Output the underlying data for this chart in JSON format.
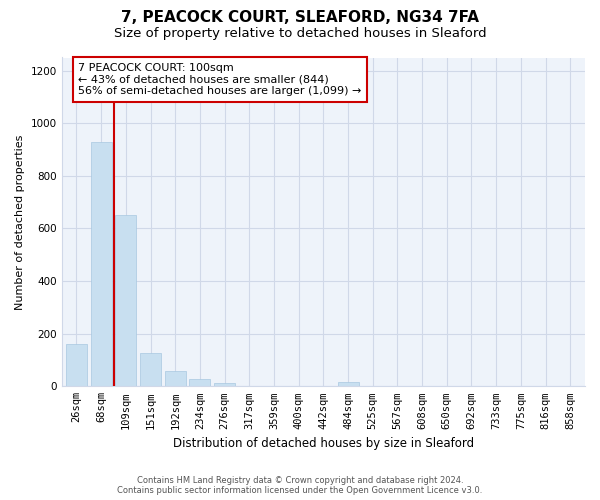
{
  "title": "7, PEACOCK COURT, SLEAFORD, NG34 7FA",
  "subtitle": "Size of property relative to detached houses in Sleaford",
  "xlabel": "Distribution of detached houses by size in Sleaford",
  "ylabel": "Number of detached properties",
  "bar_labels": [
    "26sqm",
    "68sqm",
    "109sqm",
    "151sqm",
    "192sqm",
    "234sqm",
    "276sqm",
    "317sqm",
    "359sqm",
    "400sqm",
    "442sqm",
    "484sqm",
    "525sqm",
    "567sqm",
    "608sqm",
    "650sqm",
    "692sqm",
    "733sqm",
    "775sqm",
    "816sqm",
    "858sqm"
  ],
  "bar_values": [
    160,
    930,
    650,
    125,
    60,
    28,
    12,
    0,
    0,
    0,
    0,
    15,
    0,
    0,
    0,
    0,
    0,
    0,
    0,
    0,
    0
  ],
  "bar_color": "#c8dff0",
  "bar_edgecolor": "#a8c8e0",
  "vline_x": 1.5,
  "vline_color": "#cc0000",
  "annotation_line1": "7 PEACOCK COURT: 100sqm",
  "annotation_line2": "← 43% of detached houses are smaller (844)",
  "annotation_line3": "56% of semi-detached houses are larger (1,099) →",
  "annotation_box_edgecolor": "#cc0000",
  "annotation_box_facecolor": "#ffffff",
  "ylim": [
    0,
    1250
  ],
  "yticks": [
    0,
    200,
    400,
    600,
    800,
    1000,
    1200
  ],
  "footer_line1": "Contains HM Land Registry data © Crown copyright and database right 2024.",
  "footer_line2": "Contains public sector information licensed under the Open Government Licence v3.0.",
  "bg_color": "#ffffff",
  "grid_color": "#d0d8e8",
  "plot_bg_color": "#eef3fa",
  "title_fontsize": 11,
  "subtitle_fontsize": 9.5,
  "ylabel_fontsize": 8,
  "xlabel_fontsize": 8.5,
  "tick_fontsize": 7.5,
  "annotation_fontsize": 8
}
